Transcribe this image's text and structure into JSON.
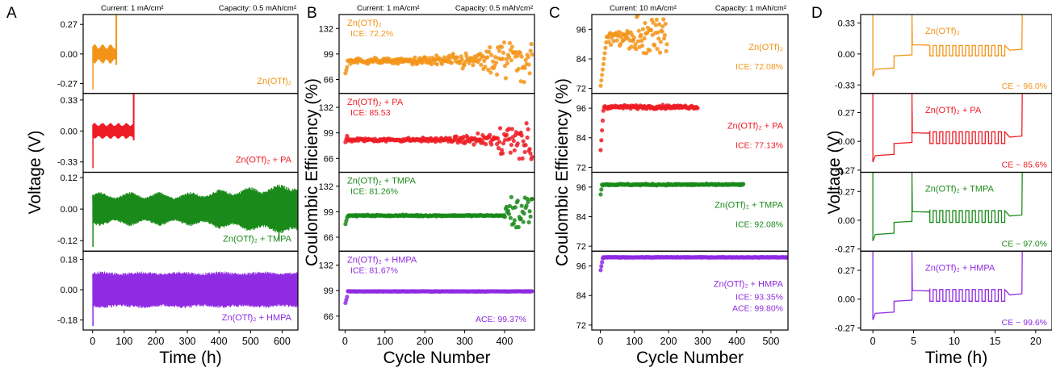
{
  "panel_letters": [
    "A",
    "B",
    "C",
    "D"
  ],
  "colors": {
    "orange": "#f39419",
    "red": "#ee1c24",
    "green": "#1a8a1a",
    "purple": "#8f2be2",
    "axis": "#000000"
  },
  "chart_data": [
    {
      "type": "line",
      "panel": "A",
      "header_left": "Current: 1 mA/cm²",
      "header_right": "Capacity: 0.5 mAh/cm²",
      "xlabel": "Time (h)",
      "ylabel": "Voltage (V)",
      "xlim": [
        -30,
        650
      ],
      "xticks": [
        0,
        100,
        200,
        300,
        400,
        500,
        600
      ],
      "subplots": [
        {
          "color": "orange",
          "ylim": [
            -0.36,
            0.36
          ],
          "yticks": [
            0.27,
            0.0,
            -0.27
          ],
          "ytick_labels": [
            "0.27",
            "0.00",
            "-0.27"
          ],
          "label": "Zn(OTf)₂",
          "end_time_h": 75
        },
        {
          "color": "red",
          "ylim": [
            -0.44,
            0.4
          ],
          "yticks": [
            0.33,
            0.0,
            -0.33
          ],
          "ytick_labels": [
            "0.33",
            "0.00",
            "-0.33"
          ],
          "label": "Zn(OTf)₂ + PA",
          "end_time_h": 130
        },
        {
          "color": "green",
          "ylim": [
            -0.16,
            0.14
          ],
          "yticks": [
            0.12,
            0.0,
            -0.12
          ],
          "ytick_labels": [
            "0.12",
            "0.00",
            "-0.12"
          ],
          "label": "Zn(OTf)₂ + TMPA",
          "end_time_h": 650
        },
        {
          "color": "purple",
          "ylim": [
            -0.24,
            0.23
          ],
          "yticks": [
            0.18,
            0.0,
            -0.18
          ],
          "ytick_labels": [
            "0.18",
            "0.00",
            "-0.18"
          ],
          "label": "Zn(OTf)₂ + HMPA",
          "end_time_h": 650
        }
      ]
    },
    {
      "type": "scatter",
      "panel": "B",
      "header_left": "Current: 1 mA/cm²",
      "header_right": "Capacity: 0.5 mAh/cm²",
      "xlabel": "Cycle Number",
      "ylabel": "Coulombic Efficiency (%)",
      "xlim": [
        -15,
        475
      ],
      "xticks": [
        0,
        100,
        200,
        300,
        400
      ],
      "subplots": [
        {
          "color": "orange",
          "ylim": [
            48,
            150
          ],
          "yticks": [
            132,
            99,
            66
          ],
          "ytick_labels": [
            "132",
            "99",
            "66"
          ],
          "label": "Zn(OTf)₂",
          "annotation": "ICE: 72.2%",
          "last_cycle": 470,
          "mean_ce": 90
        },
        {
          "color": "red",
          "ylim": [
            48,
            150
          ],
          "yticks": [
            132,
            99,
            66
          ],
          "ytick_labels": [
            "132",
            "99",
            "66"
          ],
          "label": "Zn(OTf)₂ + PA",
          "annotation": "ICE: 85.53",
          "last_cycle": 470,
          "mean_ce": 92
        },
        {
          "color": "green",
          "ylim": [
            48,
            150
          ],
          "yticks": [
            132,
            99,
            66
          ],
          "ytick_labels": [
            "132",
            "99",
            "66"
          ],
          "label": "Zn(OTf)₂ + TMPA",
          "annotation": "ICE: 81.26%",
          "last_cycle": 470,
          "mean_ce": 94
        },
        {
          "color": "purple",
          "ylim": [
            48,
            150
          ],
          "yticks": [
            132,
            99,
            66
          ],
          "ytick_labels": [
            "132",
            "99",
            "66"
          ],
          "label": "Zn(OTf)₂ + HMPA",
          "annotation": "ICE: 81.67%",
          "annotation2": "ACE: 99.37%",
          "last_cycle": 470,
          "mean_ce": 99.37
        }
      ]
    },
    {
      "type": "scatter",
      "panel": "C",
      "header_left": "Current: 10 mA/cm²",
      "header_right": "Capacity: 1 mAh/cm²",
      "xlabel": "Cycle Number",
      "ylabel": "Coulombic Efficiency (%)",
      "xlim": [
        -25,
        550
      ],
      "xticks": [
        0,
        100,
        200,
        300,
        400,
        500
      ],
      "subplots": [
        {
          "color": "orange",
          "ylim": [
            70,
            102
          ],
          "yticks": [
            96,
            84,
            72
          ],
          "ytick_labels": [
            "96",
            "84",
            "72"
          ],
          "label": "Zn(OTf)₂",
          "annotation": "ICE: 72.08%",
          "last_cycle": 195,
          "mean_ce": 93
        },
        {
          "color": "red",
          "ylim": [
            70,
            102
          ],
          "yticks": [
            96,
            84,
            72
          ],
          "ytick_labels": [
            "96",
            "84",
            "72"
          ],
          "label": "Zn(OTf)₂ + PA",
          "annotation": "ICE: 77.13%",
          "last_cycle": 285,
          "mean_ce": 96.5
        },
        {
          "color": "green",
          "ylim": [
            70,
            102
          ],
          "yticks": [
            96,
            84,
            72
          ],
          "ytick_labels": [
            "96",
            "84",
            "72"
          ],
          "label": "Zn(OTf)₂ + TMPA",
          "annotation": "ICE: 92.08%",
          "last_cycle": 420,
          "mean_ce": 97
        },
        {
          "color": "purple",
          "ylim": [
            70,
            102
          ],
          "yticks": [
            96,
            84,
            72
          ],
          "ytick_labels": [
            "96",
            "84",
            "72"
          ],
          "label": "Zn(OTf)₂ + HMPA",
          "annotation": "ICE: 93.35%",
          "annotation2": "ACE: 99.80%",
          "last_cycle": 550,
          "mean_ce": 99.8
        }
      ]
    },
    {
      "type": "line",
      "panel": "D",
      "xlabel": "Time (h)",
      "ylabel": "Voltage (V)",
      "xlim": [
        -1.5,
        22
      ],
      "xticks": [
        0,
        5,
        10,
        15,
        20
      ],
      "subplots": [
        {
          "color": "orange",
          "ylim": [
            -0.42,
            0.42
          ],
          "yticks": [
            0.33,
            0.0,
            -0.33
          ],
          "ytick_labels": [
            "0.33",
            "0.00",
            "-0.33"
          ],
          "label": "Zn(OTf)₂",
          "annotation": "CE ~ 96.0%"
        },
        {
          "color": "red",
          "ylim": [
            -0.29,
            0.45
          ],
          "yticks": [
            0.27,
            0.0,
            -0.27
          ],
          "ytick_labels": [
            "0.27",
            "0.00",
            "-0.27"
          ],
          "label": "Zn(OTf)₂ + PA",
          "annotation": "CE ~ 85.6%"
        },
        {
          "color": "green",
          "ylim": [
            -0.29,
            0.45
          ],
          "yticks": [
            0.27,
            0.0,
            -0.27
          ],
          "ytick_labels": [
            "0.27",
            "0.00",
            "-0.27"
          ],
          "label": "Zn(OTf)₂ + TMPA",
          "annotation": "CE ~ 97.0%"
        },
        {
          "color": "purple",
          "ylim": [
            -0.29,
            0.45
          ],
          "yticks": [
            0.27,
            0.0,
            -0.27
          ],
          "ytick_labels": [
            "0.27",
            "0.00",
            "-0.27"
          ],
          "label": "Zn(OTf)₂ + HMPA",
          "annotation": "CE ~ 99.6%"
        }
      ]
    }
  ]
}
